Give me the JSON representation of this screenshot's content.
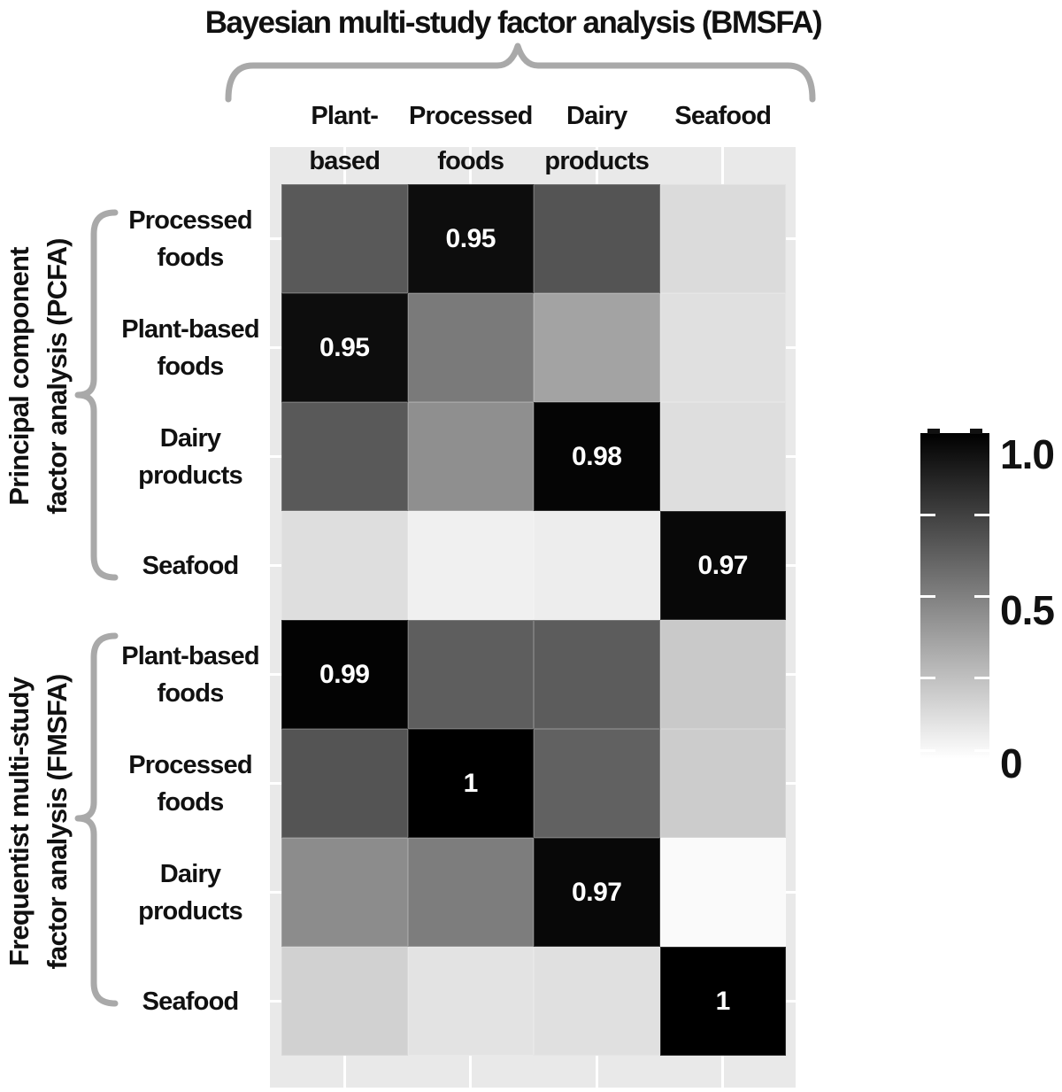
{
  "title": "Bayesian multi-study factor analysis (BMSFA)",
  "chart_data": {
    "type": "heatmap",
    "title": "Bayesian multi-study factor analysis (BMSFA)",
    "columns": [
      {
        "label": "Plant-based foods",
        "lines": [
          "Plant-based",
          "foods"
        ]
      },
      {
        "label": "Processed foods",
        "lines": [
          "Processed",
          "foods"
        ]
      },
      {
        "label": "Dairy products",
        "lines": [
          "Dairy",
          "products"
        ]
      },
      {
        "label": "Seafood",
        "lines": [
          "Seafood"
        ]
      }
    ],
    "row_groups": [
      {
        "label": "Principal component factor analysis (PCFA)",
        "lines": [
          "Principal component",
          "factor analysis  (PCFA)"
        ],
        "rows": [
          "Processed foods",
          "Plant-based foods",
          "Dairy products",
          "Seafood"
        ]
      },
      {
        "label": "Frequentist multi-study factor analysis (FMSFA)",
        "lines": [
          "Frequentist multi-study",
          "factor analysis (FMSFA)"
        ],
        "rows": [
          "Plant-based foods",
          "Processed foods",
          "Dairy products",
          "Seafood"
        ]
      }
    ],
    "rows": [
      {
        "group": "PCFA",
        "label": "Processed foods",
        "lines": [
          "Processed",
          "foods"
        ],
        "values": [
          0.65,
          0.95,
          0.67,
          0.14
        ],
        "cell_labels": [
          "",
          "0.95",
          "",
          ""
        ]
      },
      {
        "group": "PCFA",
        "label": "Plant-based foods",
        "lines": [
          "Plant-based",
          "foods"
        ],
        "values": [
          0.95,
          0.52,
          0.36,
          0.12
        ],
        "cell_labels": [
          "0.95",
          "",
          "",
          ""
        ]
      },
      {
        "group": "PCFA",
        "label": "Dairy products",
        "lines": [
          "Dairy",
          "products"
        ],
        "values": [
          0.65,
          0.44,
          0.98,
          0.13
        ],
        "cell_labels": [
          "",
          "",
          "0.98",
          ""
        ]
      },
      {
        "group": "PCFA",
        "label": "Seafood",
        "lines": [
          "Seafood"
        ],
        "values": [
          0.13,
          0.06,
          0.07,
          0.97
        ],
        "cell_labels": [
          "",
          "",
          "",
          "0.97"
        ]
      },
      {
        "group": "FMSFA",
        "label": "Plant-based foods",
        "lines": [
          "Plant-based",
          "foods"
        ],
        "values": [
          0.99,
          0.63,
          0.64,
          0.21
        ],
        "cell_labels": [
          "0.99",
          "",
          "",
          ""
        ]
      },
      {
        "group": "FMSFA",
        "label": "Processed foods",
        "lines": [
          "Processed",
          "foods"
        ],
        "values": [
          0.67,
          1.0,
          0.62,
          0.2
        ],
        "cell_labels": [
          "",
          "1",
          "",
          ""
        ]
      },
      {
        "group": "FMSFA",
        "label": "Dairy products",
        "lines": [
          "Dairy",
          "products"
        ],
        "values": [
          0.45,
          0.51,
          0.97,
          0.02
        ],
        "cell_labels": [
          "",
          "",
          "0.97",
          ""
        ]
      },
      {
        "group": "FMSFA",
        "label": "Seafood",
        "lines": [
          "Seafood"
        ],
        "values": [
          0.18,
          0.11,
          0.12,
          1.0
        ],
        "cell_labels": [
          "",
          "",
          "",
          "1"
        ]
      }
    ],
    "scale": {
      "low_color": "#ffffff",
      "high_color": "#000000",
      "min": 0,
      "max": 1
    },
    "colorbar": {
      "tick_labels": [
        "1.0",
        "0.5",
        "0"
      ],
      "tick_values": [
        1.0,
        0.5,
        0
      ]
    },
    "layout_hints": {
      "grid": true,
      "plot_background": "#e9e9e9",
      "gridline_color": "#ffffff",
      "brace_color": "#a9a9a9",
      "legend_position": "right"
    }
  }
}
